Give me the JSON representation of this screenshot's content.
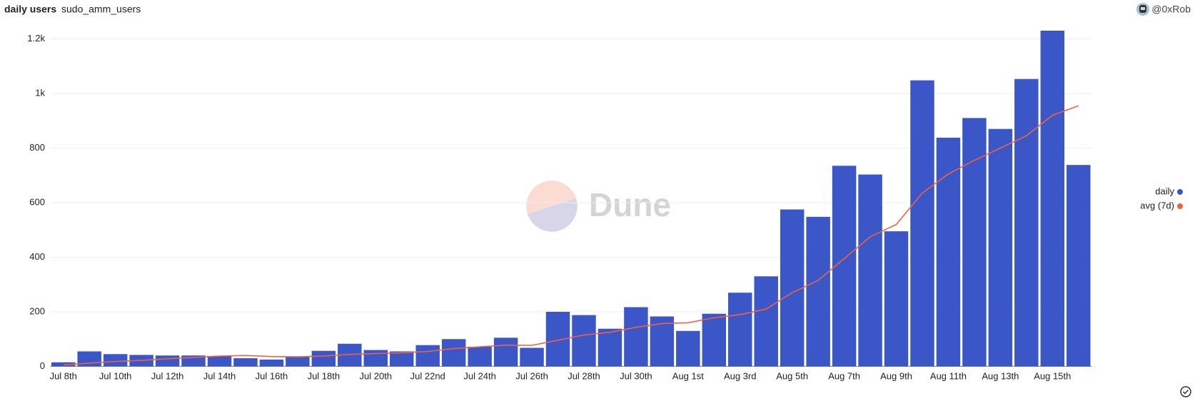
{
  "chart_data": {
    "type": "bar",
    "title": "daily users",
    "subtitle": "sudo_amm_users",
    "author": "@0xRob",
    "watermark": "Dune",
    "categories": [
      "Jul 8th",
      null,
      "Jul 10th",
      null,
      "Jul 12th",
      null,
      "Jul 14th",
      null,
      "Jul 16th",
      null,
      "Jul 18th",
      null,
      "Jul 20th",
      null,
      "Jul 22nd",
      null,
      "Jul 24th",
      null,
      "Jul 26th",
      null,
      "Jul 28th",
      null,
      "Jul 30th",
      null,
      "Aug 1st",
      null,
      "Aug 3rd",
      null,
      "Aug 5th",
      null,
      "Aug 7th",
      null,
      "Aug 9th",
      null,
      "Aug 11th",
      null,
      "Aug 13th",
      null,
      "Aug 15th",
      null
    ],
    "series": [
      {
        "name": "daily",
        "color": "#3a56c7",
        "type": "bar",
        "values": [
          15,
          55,
          45,
          42,
          40,
          40,
          38,
          30,
          25,
          35,
          57,
          83,
          60,
          55,
          78,
          100,
          72,
          105,
          68,
          200,
          188,
          138,
          217,
          183,
          130,
          193,
          270,
          330,
          575,
          548,
          735,
          703,
          495,
          1048,
          838,
          910,
          870,
          1053,
          1230,
          738
        ]
      },
      {
        "name": "avg (7d)",
        "color": "#ee6344",
        "type": "line",
        "values": [
          5,
          12,
          18,
          22,
          28,
          33,
          38,
          40,
          36,
          35,
          38,
          44,
          47,
          50,
          55,
          65,
          72,
          78,
          77,
          96,
          115,
          125,
          143,
          157,
          160,
          178,
          190,
          210,
          270,
          315,
          395,
          475,
          520,
          635,
          705,
          755,
          800,
          845,
          920,
          955
        ]
      }
    ],
    "ylim": [
      0,
      1230
    ],
    "yticks": [
      0,
      200,
      400,
      600,
      800,
      {
        "value": 1000,
        "label": "1k"
      },
      {
        "value": 1200,
        "label": "1.2k"
      }
    ],
    "grid": true,
    "legend": "right"
  }
}
